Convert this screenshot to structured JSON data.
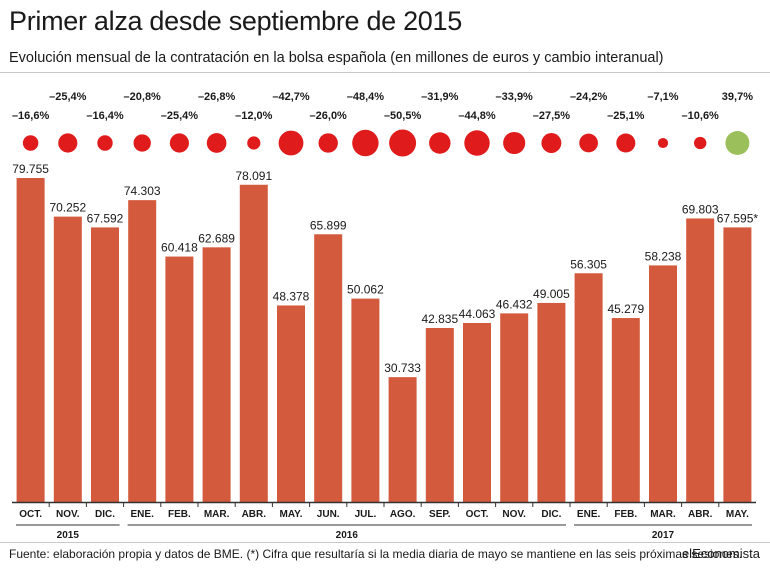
{
  "header": {
    "title": "Primer alza desde septiembre de 2015",
    "subtitle": "Evolución mensual de la contratación en la bolsa española (en millones de euros y cambio interanual)"
  },
  "footer": {
    "source": "Fuente: elaboración propia y datos de BME. (*) Cifra que resultaría si la media diaria de mayo se mantiene en las seis próximas sesiones.",
    "brand": "elEconomista"
  },
  "colors": {
    "bar": "#d35a3c",
    "bubble_negative": "#e01b1b",
    "bubble_positive": "#9bbf5a",
    "axis": "#333333"
  },
  "chart_data": {
    "type": "bar",
    "categories": [
      "OCT.",
      "NOV.",
      "DIC.",
      "ENE.",
      "FEB.",
      "MAR.",
      "ABR.",
      "MAY.",
      "JUN.",
      "JUL.",
      "AGO.",
      "SEP.",
      "OCT.",
      "NOV.",
      "DIC.",
      "ENE.",
      "FEB.",
      "MAR.",
      "ABR.",
      "MAY."
    ],
    "values": [
      79755,
      70252,
      67592,
      74303,
      60418,
      62689,
      78091,
      48378,
      65899,
      50062,
      30733,
      42835,
      44063,
      46432,
      49005,
      56305,
      45279,
      58238,
      69803,
      67595
    ],
    "value_labels": [
      "79.755",
      "70.252",
      "67.592",
      "74.303",
      "60.418",
      "62.689",
      "78.091",
      "48.378",
      "65.899",
      "50.062",
      "30.733",
      "42.835",
      "44.063",
      "46.432",
      "49.005",
      "56.305",
      "45.279",
      "58.238",
      "69.803",
      "67.595*"
    ],
    "yoy_change": [
      -16.6,
      -25.4,
      -16.4,
      -20.8,
      -25.4,
      -26.8,
      -12.0,
      -42.7,
      -26.0,
      -48.4,
      -50.5,
      -31.9,
      -44.8,
      -33.9,
      -27.5,
      -24.2,
      -25.1,
      -7.1,
      -10.6,
      39.7
    ],
    "yoy_labels": [
      "–16,6%",
      "–25,4%",
      "–16,4%",
      "–20,8%",
      "–25,4%",
      "–26,8%",
      "–12,0%",
      "–42,7%",
      "–26,0%",
      "–48,4%",
      "–50,5%",
      "–31,9%",
      "–44,8%",
      "–33,9%",
      "–27,5%",
      "–24,2%",
      "–25,1%",
      "–7,1%",
      "–10,6%",
      "39,7%"
    ],
    "years": [
      {
        "label": "2015",
        "from": 0,
        "to": 2
      },
      {
        "label": "2016",
        "from": 3,
        "to": 14
      },
      {
        "label": "2017",
        "from": 15,
        "to": 19
      }
    ],
    "ylim": [
      0,
      82000
    ]
  }
}
